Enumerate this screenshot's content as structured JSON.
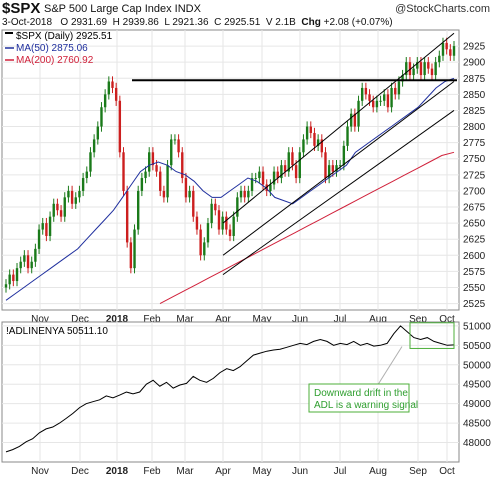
{
  "header": {
    "symbol": "$SPX",
    "name": "S&P 500 Large Cap Index  INDX",
    "watermark": "@StockCharts.com",
    "date": "3-Oct-2018",
    "open_label": "O",
    "open": "2931.69",
    "high_label": "H",
    "high": "2939.86",
    "low_label": "L",
    "low": "2921.36",
    "close_label": "C",
    "close": "2925.51",
    "vol_label": "V",
    "volume": "2.1B",
    "chg_label": "Chg",
    "change": "+2.08 (+0.07%)"
  },
  "colors": {
    "up": "#1a7a1a",
    "down": "#cc1f1f",
    "ma50": "#1f2f9e",
    "ma200": "#d0203a",
    "trend": "#000000",
    "annotation_box": "#4caf3a",
    "annotation_text": "#2e9e2e"
  },
  "annotation": {
    "lines": [
      "Downward drift in the",
      "ADL is a warning signal"
    ]
  },
  "chart_data": [
    {
      "type": "candlestick",
      "legend": [
        {
          "label": "$SPX (Daily) 2925.51",
          "color": "#000000"
        },
        {
          "label": "MA(50) 2875.06",
          "color": "#1f2f9e"
        },
        {
          "label": "MA(200) 2760.92",
          "color": "#d0203a"
        }
      ],
      "ylim": [
        2515,
        2950
      ],
      "y_ticks": [
        2525,
        2550,
        2575,
        2600,
        2625,
        2650,
        2675,
        2700,
        2725,
        2750,
        2775,
        2800,
        2825,
        2850,
        2875,
        2900,
        2925
      ],
      "x_labels": [
        "Nov",
        "Dec",
        "2018",
        "Feb",
        "Mar",
        "Apr",
        "May",
        "Jun",
        "Jul",
        "Aug",
        "Sep",
        "Oct"
      ],
      "close_series": [
        2555,
        2570,
        2560,
        2580,
        2590,
        2600,
        2580,
        2590,
        2610,
        2640,
        2650,
        2630,
        2660,
        2680,
        2670,
        2660,
        2690,
        2700,
        2680,
        2690,
        2700,
        2720,
        2730,
        2760,
        2780,
        2800,
        2830,
        2850,
        2870,
        2860,
        2840,
        2760,
        2700,
        2620,
        2580,
        2640,
        2700,
        2720,
        2730,
        2760,
        2740,
        2730,
        2700,
        2690,
        2740,
        2780,
        2780,
        2760,
        2720,
        2690,
        2700,
        2660,
        2640,
        2600,
        2620,
        2650,
        2680,
        2670,
        2640,
        2660,
        2640,
        2630,
        2660,
        2690,
        2700,
        2690,
        2700,
        2720,
        2720,
        2730,
        2710,
        2700,
        2710,
        2730,
        2720,
        2740,
        2730,
        2760,
        2740,
        2720,
        2760,
        2780,
        2800,
        2790,
        2770,
        2780,
        2760,
        2720,
        2740,
        2730,
        2740,
        2740,
        2770,
        2800,
        2820,
        2800,
        2840,
        2860,
        2850,
        2840,
        2830,
        2840,
        2840,
        2850,
        2830,
        2860,
        2850,
        2870,
        2880,
        2900,
        2880,
        2890,
        2900,
        2880,
        2900,
        2890,
        2880,
        2900,
        2910,
        2930,
        2920,
        2910,
        2925
      ],
      "ma50": [
        2530,
        2540,
        2550,
        2560,
        2570,
        2580,
        2590,
        2600,
        2610,
        2625,
        2640,
        2655,
        2670,
        2690,
        2710,
        2730,
        2740,
        2745,
        2740,
        2730,
        2725,
        2715,
        2700,
        2690,
        2690,
        2700,
        2710,
        2720,
        2715,
        2705,
        2690,
        2685,
        2680,
        2690,
        2700,
        2710,
        2720,
        2730,
        2740,
        2760,
        2770,
        2780,
        2790,
        2800,
        2810,
        2820,
        2830,
        2845,
        2860,
        2870,
        2875
      ],
      "ma200": [
        2525,
        2535,
        2545,
        2555,
        2565,
        2575,
        2585,
        2595,
        2605,
        2615,
        2625,
        2635,
        2645,
        2655,
        2665,
        2675,
        2685,
        2695,
        2705,
        2715,
        2725,
        2735,
        2745,
        2755,
        2760
      ],
      "horizontal_line": 2872,
      "channel": {
        "start": "Apr",
        "end": "Oct",
        "lower_start": 2570,
        "lower_end": 2825,
        "upper_start": 2650,
        "upper_end": 2945,
        "mid_start": 2600,
        "mid_end": 2870
      }
    },
    {
      "type": "line",
      "legend": [
        {
          "label": "!ADLINENYA 50511.10",
          "color": "#000000"
        }
      ],
      "ylim": [
        47500,
        51100
      ],
      "y_ticks": [
        48000,
        48500,
        49000,
        49500,
        50000,
        50500,
        51000
      ],
      "x_labels": [
        "Nov",
        "Dec",
        "2018",
        "Feb",
        "Mar",
        "Apr",
        "May",
        "Jun",
        "Jul",
        "Aug",
        "Sep",
        "Oct"
      ],
      "values": [
        47760,
        47820,
        47900,
        48020,
        48100,
        48250,
        48350,
        48400,
        48500,
        48620,
        48750,
        48900,
        49000,
        49050,
        49100,
        49200,
        49150,
        49220,
        49300,
        49250,
        49300,
        49500,
        49600,
        49450,
        49550,
        49400,
        49480,
        49520,
        49700,
        49600,
        49550,
        49650,
        49800,
        49900,
        49850,
        49950,
        50100,
        50250,
        50300,
        50350,
        50380,
        50400,
        50450,
        50500,
        50550,
        50520,
        50600,
        50650,
        50600,
        50500,
        50550,
        50520,
        50600,
        50500,
        50550,
        50480,
        50500,
        50550,
        50800,
        51000,
        50850,
        50700,
        50650,
        50700,
        50600,
        50550,
        50500,
        50511
      ]
    }
  ]
}
